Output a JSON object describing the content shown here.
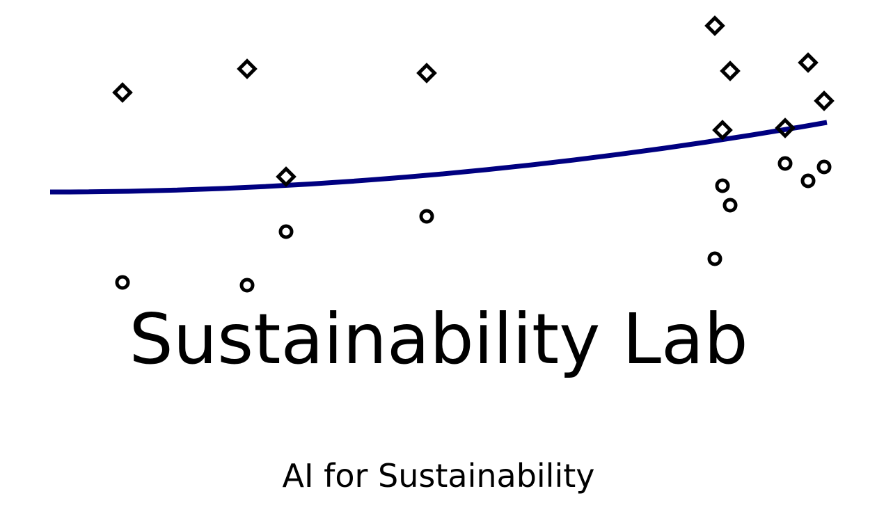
{
  "logo": {
    "name": "Sustainability Lab",
    "tagline": "AI for Sustainability",
    "trend_color": "#000080",
    "marker_color": "#000000",
    "markers": [
      {
        "shape": "diamond",
        "group": 0
      },
      {
        "shape": "circle",
        "group": 0
      },
      {
        "shape": "diamond",
        "group": 1
      },
      {
        "shape": "circle",
        "group": 1
      },
      {
        "shape": "diamond",
        "group": 2
      },
      {
        "shape": "circle",
        "group": 2
      },
      {
        "shape": "diamond",
        "group": 3
      },
      {
        "shape": "circle",
        "group": 3
      },
      {
        "shape": "diamond",
        "group": 4
      },
      {
        "shape": "circle",
        "group": 4
      },
      {
        "shape": "diamond",
        "group": 5
      },
      {
        "shape": "circle",
        "group": 5
      },
      {
        "shape": "diamond",
        "group": 6
      },
      {
        "shape": "circle",
        "group": 6
      },
      {
        "shape": "diamond",
        "group": 7
      },
      {
        "shape": "circle",
        "group": 7
      },
      {
        "shape": "diamond",
        "group": 8
      },
      {
        "shape": "circle",
        "group": 8
      },
      {
        "shape": "diamond",
        "group": 9
      },
      {
        "shape": "circle",
        "group": 9
      }
    ]
  }
}
